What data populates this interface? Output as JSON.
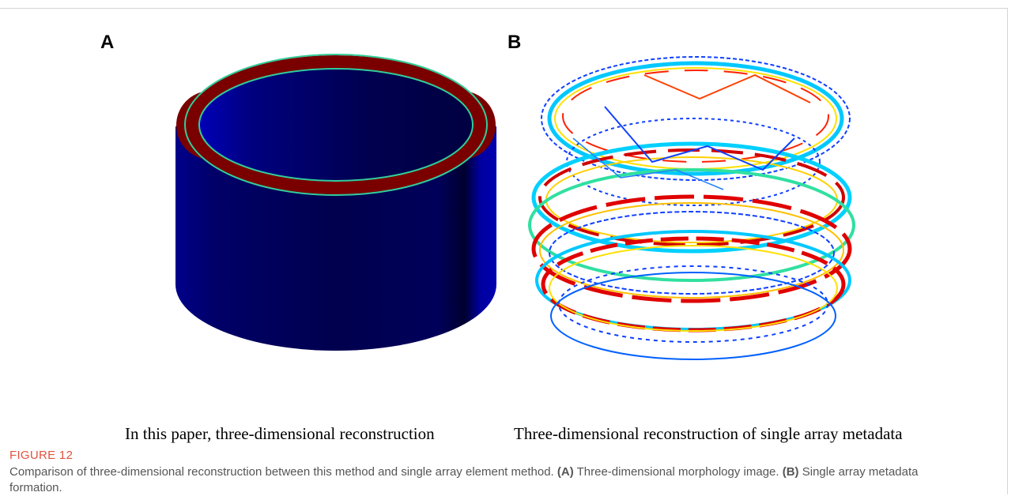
{
  "figure": {
    "panels": [
      {
        "label": "A",
        "caption": "In this paper, three-dimensional reconstruction"
      },
      {
        "label": "B",
        "caption": "Three-dimensional reconstruction of single array metadata"
      }
    ],
    "figure_label": "FIGURE 12",
    "caption": [
      "Comparison of three-dimensional reconstruction between this method and single array element method. ",
      "(A)",
      " Three-dimensional morphology image. ",
      "(B)",
      " Single array metadata formation."
    ]
  }
}
